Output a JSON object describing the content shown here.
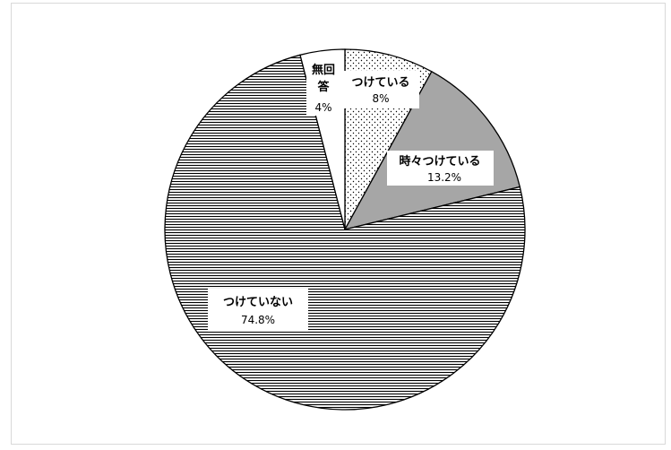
{
  "chart_data": {
    "type": "pie",
    "start_angle_deg": 0,
    "direction": "clockwise",
    "slices": [
      {
        "label": "つけている",
        "value": 8,
        "value_label": "8%",
        "pattern": "dots",
        "color": "#ffffff"
      },
      {
        "label": "時々つけている",
        "value": 13.2,
        "value_label": "13.2%",
        "pattern": "solid",
        "color": "#a6a6a6"
      },
      {
        "label": "つけていない",
        "value": 74.8,
        "value_label": "74.8%",
        "pattern": "horizontal-lines",
        "color": "#ffffff"
      },
      {
        "label": "無回答",
        "value": 4,
        "value_label": "4%",
        "pattern": "none",
        "color": "#ffffff"
      }
    ]
  }
}
